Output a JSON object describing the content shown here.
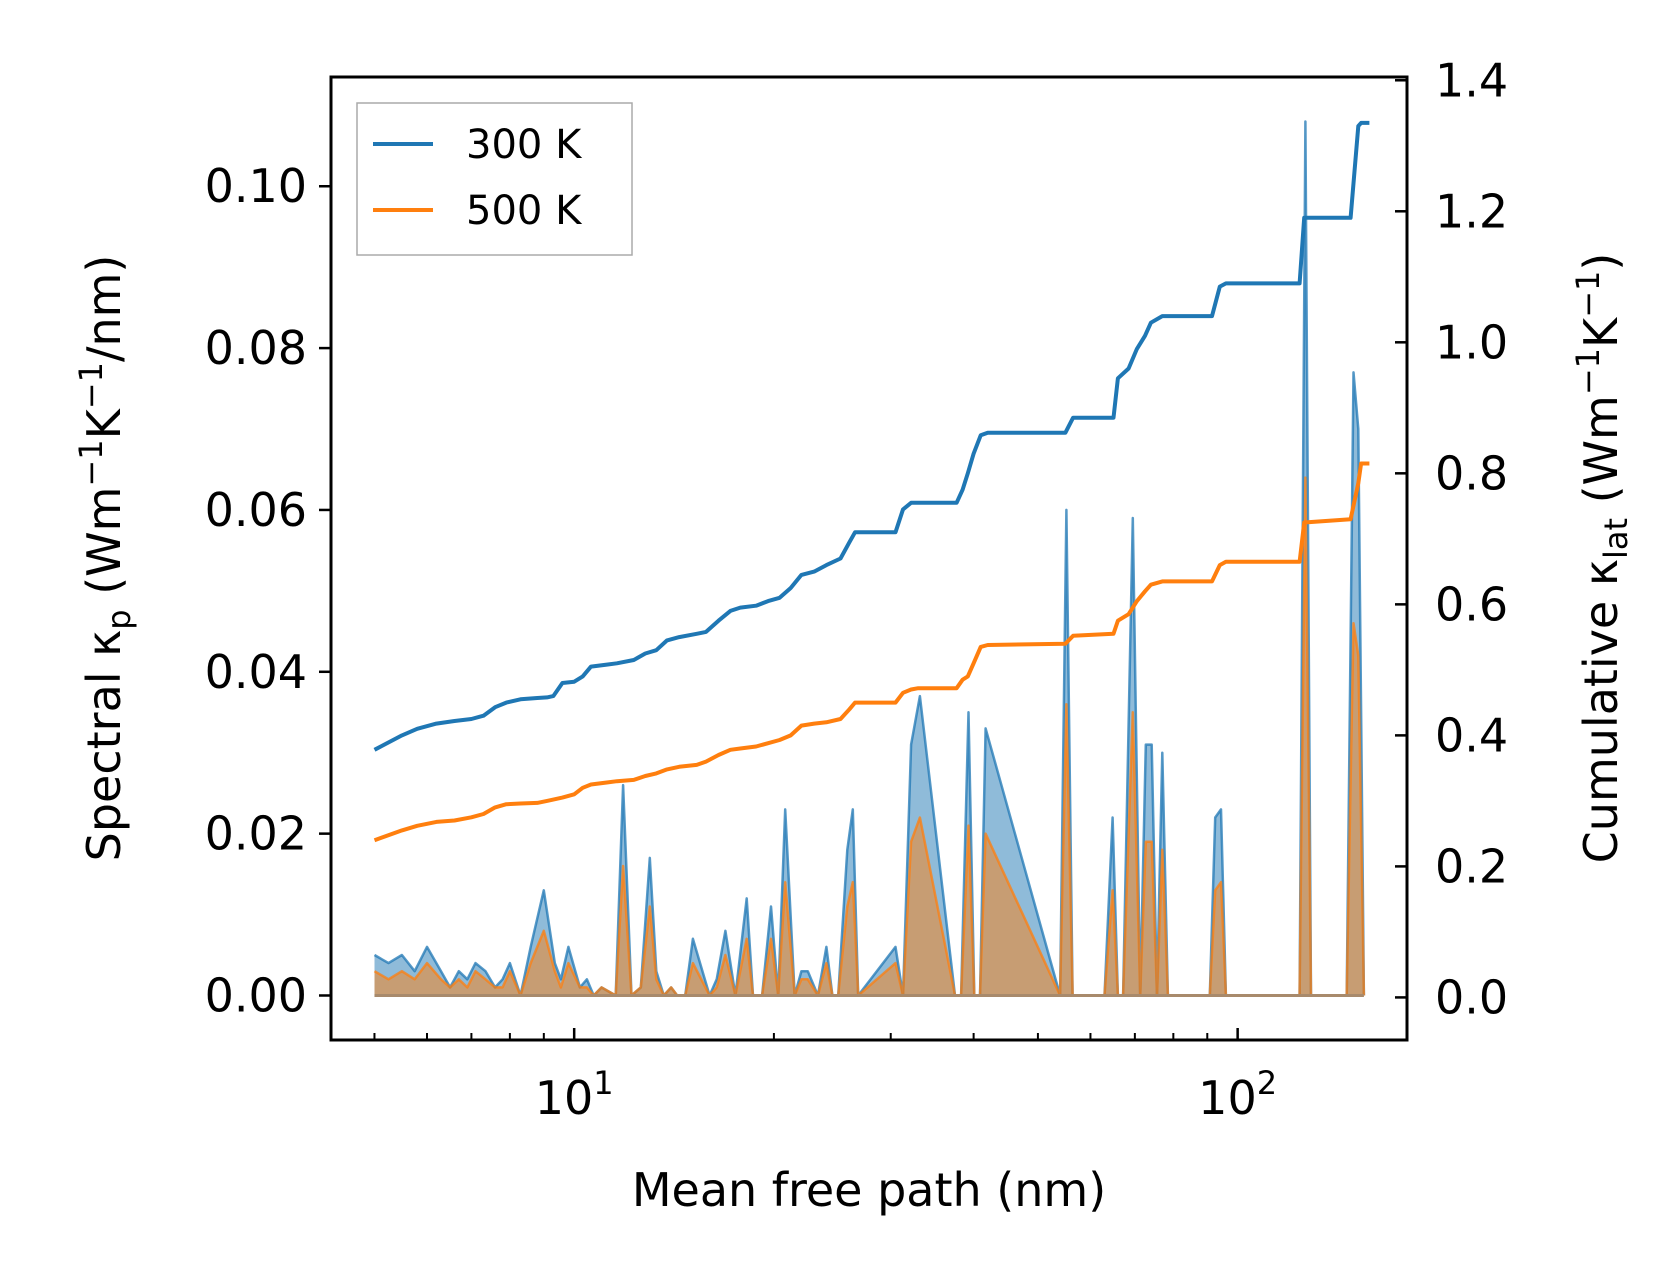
{
  "chart_data": {
    "type": "line",
    "xlabel": "Mean free path (nm)",
    "xscale": "log",
    "xlim": [
      4.3,
      180
    ],
    "x_ticks": [
      {
        "value": 10,
        "mantissa": "10",
        "exponent": "1"
      },
      {
        "value": 100,
        "mantissa": "10",
        "exponent": "2"
      }
    ],
    "y_left": {
      "label_parts": [
        "Spectral κ",
        "p",
        " (Wm",
        "−1",
        "K",
        "−1",
        "/nm)"
      ],
      "ylim": [
        -0.0055,
        0.1135
      ],
      "ticks": [
        0.0,
        0.02,
        0.04,
        0.06,
        0.08,
        0.1
      ],
      "tick_labels": [
        "0.00",
        "0.02",
        "0.04",
        "0.06",
        "0.08",
        "0.10"
      ]
    },
    "y_right": {
      "label_parts": [
        "Cumulative κ",
        "lat",
        " (Wm",
        "−1",
        "K",
        "−1",
        ")"
      ],
      "ylim": [
        -0.065,
        1.405
      ],
      "ticks": [
        0.0,
        0.2,
        0.4,
        0.6,
        0.8,
        1.0,
        1.2,
        1.4
      ],
      "tick_labels": [
        "0.0",
        "0.2",
        "0.4",
        "0.6",
        "0.8",
        "1.0",
        "1.2",
        "1.4"
      ]
    },
    "legend": {
      "position": "top-left",
      "entries": [
        "300 K",
        "500 K"
      ]
    },
    "colors": {
      "s300": "#1f77b4",
      "s500": "#ff7f0e",
      "fill_mix": "#a88a6c"
    },
    "spectral": {
      "x": [
        5.0,
        5.25,
        5.5,
        5.75,
        6.0,
        6.3,
        6.5,
        6.7,
        6.9,
        7.1,
        7.35,
        7.6,
        7.8,
        8.0,
        8.3,
        8.6,
        9.0,
        9.35,
        9.55,
        9.8,
        10.2,
        10.45,
        10.7,
        11.0,
        11.55,
        11.85,
        12.2,
        12.6,
        13.0,
        13.3,
        13.65,
        14.0,
        14.3,
        14.7,
        15.1,
        16.0,
        16.4,
        16.9,
        17.5,
        18.2,
        18.6,
        19.2,
        19.8,
        20.3,
        20.8,
        21.5,
        22.0,
        22.5,
        23.3,
        24.0,
        24.5,
        25.0,
        25.8,
        26.3,
        26.8,
        30.5,
        31.3,
        32.2,
        33.2,
        37.5,
        38.3,
        39.3,
        40.1,
        40.9,
        41.7,
        54.0,
        55.2,
        56.4,
        63.0,
        64.8,
        66.0,
        67.2,
        69.5,
        71.3,
        72.7,
        74.2,
        75.6,
        77.0,
        78.5,
        90.8,
        92.5,
        94.4,
        96.0,
        124.0,
        126.5,
        129.0,
        146.0,
        149.5,
        152.0,
        155.0
      ],
      "s300": [
        0.005,
        0.004,
        0.005,
        0.003,
        0.006,
        0.003,
        0.001,
        0.003,
        0.002,
        0.004,
        0.003,
        0.001,
        0.002,
        0.004,
        0.0,
        0.006,
        0.013,
        0.004,
        0.002,
        0.006,
        0.001,
        0.002,
        0.0,
        0.001,
        0.0,
        0.026,
        0.0,
        0.001,
        0.017,
        0.003,
        0.0,
        0.001,
        0.0,
        0.0,
        0.007,
        0.0,
        0.002,
        0.008,
        0.0,
        0.012,
        0.0,
        0.0,
        0.011,
        0.0,
        0.023,
        0.0,
        0.003,
        0.003,
        0.0,
        0.006,
        0.0,
        0.0,
        0.018,
        0.023,
        0.0,
        0.006,
        0.0,
        0.031,
        0.037,
        0.0,
        0.0,
        0.035,
        0.0,
        0.0,
        0.033,
        0.0,
        0.06,
        0.0,
        0.0,
        0.022,
        0.0,
        0.0,
        0.059,
        0.0,
        0.031,
        0.031,
        0.0,
        0.03,
        0.0,
        0.0,
        0.022,
        0.023,
        0.0,
        0.0,
        0.108,
        0.0,
        0.0,
        0.077,
        0.07,
        0.0
      ],
      "s500": [
        0.003,
        0.002,
        0.003,
        0.002,
        0.004,
        0.002,
        0.001,
        0.002,
        0.001,
        0.003,
        0.002,
        0.001,
        0.001,
        0.003,
        0.0,
        0.004,
        0.008,
        0.003,
        0.001,
        0.004,
        0.001,
        0.001,
        0.0,
        0.001,
        0.0,
        0.016,
        0.0,
        0.001,
        0.011,
        0.002,
        0.0,
        0.001,
        0.0,
        0.0,
        0.004,
        0.0,
        0.001,
        0.005,
        0.0,
        0.007,
        0.0,
        0.0,
        0.007,
        0.0,
        0.014,
        0.0,
        0.002,
        0.002,
        0.0,
        0.004,
        0.0,
        0.0,
        0.011,
        0.014,
        0.0,
        0.004,
        0.0,
        0.019,
        0.022,
        0.0,
        0.0,
        0.021,
        0.0,
        0.0,
        0.02,
        0.0,
        0.036,
        0.0,
        0.0,
        0.013,
        0.0,
        0.0,
        0.035,
        0.0,
        0.019,
        0.019,
        0.0,
        0.018,
        0.0,
        0.0,
        0.013,
        0.014,
        0.0,
        0.0,
        0.064,
        0.0,
        0.0,
        0.046,
        0.042,
        0.0
      ]
    },
    "cumulative": {
      "x": [
        5.0,
        5.5,
        5.8,
        6.2,
        6.6,
        7.0,
        7.3,
        7.6,
        7.9,
        8.3,
        8.8,
        9.1,
        9.3,
        9.6,
        10.0,
        10.3,
        10.6,
        11.2,
        11.6,
        12.3,
        12.8,
        13.3,
        13.8,
        14.4,
        15.3,
        15.8,
        16.5,
        17.2,
        17.8,
        18.8,
        19.6,
        20.4,
        21.2,
        22.0,
        23.0,
        24.0,
        25.2,
        26.0,
        26.5,
        30.5,
        31.3,
        32.2,
        33.0,
        37.7,
        38.5,
        39.2,
        40.0,
        41.0,
        42.0,
        55.0,
        56.5,
        65.0,
        66.0,
        68.5,
        70.5,
        72.5,
        74.0,
        77.0,
        78.5,
        91.5,
        94.0,
        96.0,
        124.0,
        126.0,
        148.0,
        152.0,
        153.5,
        158.0
      ],
      "c300": [
        0.378,
        0.4,
        0.41,
        0.418,
        0.422,
        0.425,
        0.43,
        0.443,
        0.45,
        0.455,
        0.457,
        0.458,
        0.46,
        0.48,
        0.482,
        0.49,
        0.505,
        0.508,
        0.51,
        0.515,
        0.525,
        0.53,
        0.545,
        0.55,
        0.555,
        0.558,
        0.575,
        0.59,
        0.595,
        0.598,
        0.605,
        0.61,
        0.625,
        0.645,
        0.65,
        0.66,
        0.67,
        0.695,
        0.71,
        0.71,
        0.745,
        0.755,
        0.755,
        0.755,
        0.775,
        0.8,
        0.83,
        0.858,
        0.862,
        0.862,
        0.885,
        0.885,
        0.945,
        0.96,
        0.99,
        1.01,
        1.03,
        1.04,
        1.04,
        1.04,
        1.085,
        1.09,
        1.09,
        1.19,
        1.19,
        1.33,
        1.335,
        1.335
      ],
      "c500": [
        0.24,
        0.255,
        0.262,
        0.268,
        0.27,
        0.275,
        0.28,
        0.29,
        0.295,
        0.296,
        0.297,
        0.3,
        0.302,
        0.305,
        0.31,
        0.32,
        0.325,
        0.328,
        0.33,
        0.332,
        0.338,
        0.342,
        0.348,
        0.352,
        0.355,
        0.36,
        0.37,
        0.378,
        0.38,
        0.383,
        0.388,
        0.393,
        0.4,
        0.415,
        0.418,
        0.42,
        0.425,
        0.44,
        0.45,
        0.45,
        0.465,
        0.47,
        0.472,
        0.472,
        0.485,
        0.49,
        0.51,
        0.535,
        0.538,
        0.54,
        0.552,
        0.555,
        0.575,
        0.585,
        0.605,
        0.62,
        0.63,
        0.635,
        0.635,
        0.635,
        0.66,
        0.665,
        0.665,
        0.725,
        0.73,
        0.785,
        0.815,
        0.815
      ]
    }
  }
}
